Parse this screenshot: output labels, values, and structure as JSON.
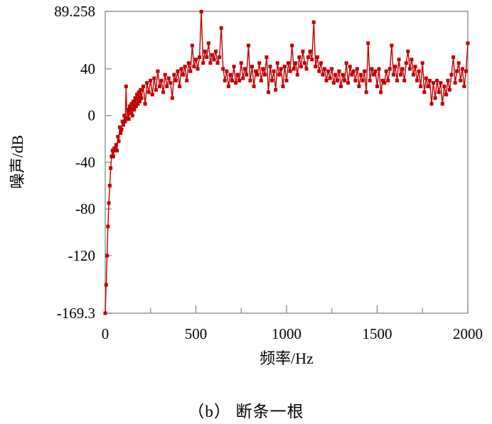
{
  "chart_data": {
    "type": "line",
    "title": "",
    "xlabel": "频率/Hz",
    "ylabel": "噪声/dB",
    "xlim": [
      0,
      2000
    ],
    "ylim": [
      -169.3,
      89.258
    ],
    "x_ticks": [
      0,
      500,
      1000,
      1500,
      2000
    ],
    "x_tick_labels": [
      "0",
      "500",
      "1000",
      "1500",
      "2000"
    ],
    "y_ticks": [
      89.258,
      40,
      0,
      -40,
      -80,
      -120,
      -169.3
    ],
    "y_tick_labels": [
      "89.258",
      "40",
      "0",
      "-40",
      "-80",
      "-120",
      "-169.3"
    ],
    "grid": false,
    "series": [
      {
        "color": "#c00000",
        "marker": "square",
        "points": [
          [
            0,
            -169.3
          ],
          [
            5,
            -145
          ],
          [
            10,
            -120
          ],
          [
            15,
            -95
          ],
          [
            20,
            -75
          ],
          [
            25,
            -60
          ],
          [
            30,
            -45
          ],
          [
            35,
            -35
          ],
          [
            40,
            -30
          ],
          [
            45,
            -35
          ],
          [
            50,
            -28
          ],
          [
            55,
            -30
          ],
          [
            60,
            -25
          ],
          [
            65,
            -30
          ],
          [
            70,
            -18
          ],
          [
            75,
            -22
          ],
          [
            80,
            -10
          ],
          [
            85,
            -15
          ],
          [
            90,
            -12
          ],
          [
            95,
            -5
          ],
          [
            100,
            -8
          ],
          [
            105,
            0
          ],
          [
            110,
            -5
          ],
          [
            115,
            25
          ],
          [
            120,
            -2
          ],
          [
            125,
            5
          ],
          [
            130,
            -3
          ],
          [
            135,
            8
          ],
          [
            140,
            2
          ],
          [
            145,
            10
          ],
          [
            150,
            0
          ],
          [
            155,
            12
          ],
          [
            160,
            5
          ],
          [
            165,
            15
          ],
          [
            170,
            8
          ],
          [
            175,
            18
          ],
          [
            180,
            10
          ],
          [
            185,
            20
          ],
          [
            190,
            12
          ],
          [
            195,
            22
          ],
          [
            200,
            15
          ],
          [
            210,
            25
          ],
          [
            220,
            10
          ],
          [
            230,
            28
          ],
          [
            240,
            20
          ],
          [
            250,
            30
          ],
          [
            260,
            18
          ],
          [
            270,
            32
          ],
          [
            280,
            22
          ],
          [
            290,
            38
          ],
          [
            300,
            25
          ],
          [
            310,
            30
          ],
          [
            320,
            20
          ],
          [
            330,
            35
          ],
          [
            340,
            25
          ],
          [
            350,
            32
          ],
          [
            360,
            28
          ],
          [
            370,
            15
          ],
          [
            380,
            35
          ],
          [
            390,
            30
          ],
          [
            400,
            38
          ],
          [
            410,
            25
          ],
          [
            420,
            40
          ],
          [
            430,
            35
          ],
          [
            440,
            42
          ],
          [
            450,
            30
          ],
          [
            460,
            45
          ],
          [
            470,
            38
          ],
          [
            480,
            60
          ],
          [
            490,
            42
          ],
          [
            500,
            48
          ],
          [
            510,
            40
          ],
          [
            520,
            50
          ],
          [
            530,
            89
          ],
          [
            540,
            45
          ],
          [
            550,
            55
          ],
          [
            560,
            50
          ],
          [
            570,
            62
          ],
          [
            580,
            45
          ],
          [
            590,
            52
          ],
          [
            600,
            48
          ],
          [
            610,
            55
          ],
          [
            620,
            45
          ],
          [
            630,
            50
          ],
          [
            640,
            75
          ],
          [
            650,
            40
          ],
          [
            660,
            30
          ],
          [
            670,
            38
          ],
          [
            680,
            25
          ],
          [
            690,
            35
          ],
          [
            700,
            30
          ],
          [
            710,
            42
          ],
          [
            720,
            28
          ],
          [
            730,
            35
          ],
          [
            740,
            30
          ],
          [
            750,
            45
          ],
          [
            760,
            32
          ],
          [
            770,
            40
          ],
          [
            780,
            35
          ],
          [
            790,
            60
          ],
          [
            800,
            30
          ],
          [
            810,
            42
          ],
          [
            820,
            25
          ],
          [
            830,
            38
          ],
          [
            840,
            35
          ],
          [
            850,
            45
          ],
          [
            860,
            30
          ],
          [
            870,
            40
          ],
          [
            880,
            35
          ],
          [
            890,
            50
          ],
          [
            900,
            20
          ],
          [
            910,
            42
          ],
          [
            920,
            30
          ],
          [
            930,
            38
          ],
          [
            940,
            22
          ],
          [
            950,
            45
          ],
          [
            960,
            35
          ],
          [
            970,
            40
          ],
          [
            980,
            25
          ],
          [
            990,
            42
          ],
          [
            1000,
            30
          ],
          [
            1010,
            45
          ],
          [
            1020,
            38
          ],
          [
            1030,
            60
          ],
          [
            1040,
            40
          ],
          [
            1050,
            45
          ],
          [
            1060,
            35
          ],
          [
            1070,
            50
          ],
          [
            1080,
            42
          ],
          [
            1090,
            55
          ],
          [
            1100,
            45
          ],
          [
            1110,
            40
          ],
          [
            1120,
            50
          ],
          [
            1130,
            55
          ],
          [
            1140,
            48
          ],
          [
            1150,
            80
          ],
          [
            1160,
            42
          ],
          [
            1170,
            50
          ],
          [
            1180,
            38
          ],
          [
            1190,
            45
          ],
          [
            1200,
            35
          ],
          [
            1210,
            40
          ],
          [
            1220,
            30
          ],
          [
            1230,
            38
          ],
          [
            1240,
            32
          ],
          [
            1250,
            40
          ],
          [
            1260,
            28
          ],
          [
            1270,
            35
          ],
          [
            1280,
            30
          ],
          [
            1290,
            38
          ],
          [
            1300,
            25
          ],
          [
            1310,
            35
          ],
          [
            1320,
            30
          ],
          [
            1330,
            45
          ],
          [
            1340,
            28
          ],
          [
            1350,
            42
          ],
          [
            1360,
            35
          ],
          [
            1370,
            38
          ],
          [
            1380,
            30
          ],
          [
            1390,
            40
          ],
          [
            1400,
            25
          ],
          [
            1410,
            35
          ],
          [
            1420,
            30
          ],
          [
            1430,
            38
          ],
          [
            1440,
            20
          ],
          [
            1450,
            62
          ],
          [
            1460,
            30
          ],
          [
            1470,
            40
          ],
          [
            1480,
            35
          ],
          [
            1490,
            38
          ],
          [
            1500,
            25
          ],
          [
            1510,
            40
          ],
          [
            1520,
            20
          ],
          [
            1530,
            30
          ],
          [
            1540,
            28
          ],
          [
            1550,
            38
          ],
          [
            1560,
            30
          ],
          [
            1570,
            40
          ],
          [
            1580,
            60
          ],
          [
            1590,
            35
          ],
          [
            1600,
            42
          ],
          [
            1610,
            30
          ],
          [
            1620,
            48
          ],
          [
            1630,
            35
          ],
          [
            1640,
            40
          ],
          [
            1650,
            30
          ],
          [
            1660,
            45
          ],
          [
            1670,
            55
          ],
          [
            1680,
            40
          ],
          [
            1690,
            48
          ],
          [
            1700,
            35
          ],
          [
            1710,
            42
          ],
          [
            1720,
            30
          ],
          [
            1730,
            38
          ],
          [
            1740,
            25
          ],
          [
            1750,
            45
          ],
          [
            1760,
            20
          ],
          [
            1770,
            32
          ],
          [
            1780,
            25
          ],
          [
            1790,
            30
          ],
          [
            1800,
            10
          ],
          [
            1810,
            28
          ],
          [
            1820,
            15
          ],
          [
            1830,
            30
          ],
          [
            1840,
            20
          ],
          [
            1850,
            28
          ],
          [
            1860,
            10
          ],
          [
            1870,
            25
          ],
          [
            1880,
            18
          ],
          [
            1890,
            30
          ],
          [
            1900,
            22
          ],
          [
            1910,
            35
          ],
          [
            1920,
            50
          ],
          [
            1930,
            28
          ],
          [
            1940,
            38
          ],
          [
            1950,
            45
          ],
          [
            1960,
            30
          ],
          [
            1970,
            40
          ],
          [
            1980,
            25
          ],
          [
            1990,
            38
          ],
          [
            2000,
            62
          ]
        ]
      }
    ]
  },
  "caption": "（b）  断条一根"
}
